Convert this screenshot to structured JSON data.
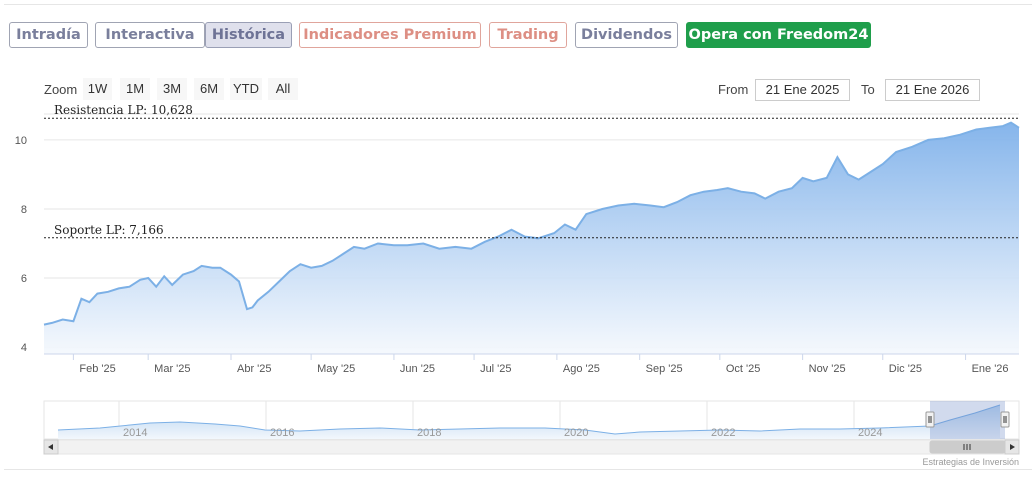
{
  "tabs": [
    {
      "label": "Intradía",
      "style": "grey"
    },
    {
      "label": "Interactiva",
      "style": "grey"
    },
    {
      "label": "Histórica",
      "style": "active"
    },
    {
      "label": "Indicadores Premium",
      "style": "red"
    },
    {
      "label": "Trading",
      "style": "red"
    },
    {
      "label": "Dividendos",
      "style": "grey"
    },
    {
      "label": "Opera con Freedom24",
      "style": "green"
    }
  ],
  "zoom": {
    "label": "Zoom",
    "buttons": [
      "1W",
      "1M",
      "3M",
      "6M",
      "YTD",
      "All"
    ]
  },
  "range": {
    "from_label": "From",
    "from_value": "21 Ene 2025",
    "to_label": "To",
    "to_value": "21 Ene 2026"
  },
  "credit": "Estrategias de Inversión",
  "colors": {
    "series": "#7cb0e6",
    "area_top": "#7fb1ea",
    "area_bottom": "#f4f8fd",
    "tab_green": "#1f9e4b"
  },
  "chart_data": {
    "type": "area",
    "title": "",
    "xlabel": "",
    "ylabel": "",
    "ylim": [
      3.8,
      10.75
    ],
    "yticks": [
      4,
      6,
      8,
      10
    ],
    "xlim": [
      "2025-01-21",
      "2026-01-21"
    ],
    "x_tick_labels": [
      {
        "label": "Feb '25",
        "date": "2025-02-01"
      },
      {
        "label": "Mar '25",
        "date": "2025-03-01"
      },
      {
        "label": "Abr '25",
        "date": "2025-04-01"
      },
      {
        "label": "May '25",
        "date": "2025-05-01"
      },
      {
        "label": "Jun '25",
        "date": "2025-06-01"
      },
      {
        "label": "Jul '25",
        "date": "2025-07-01"
      },
      {
        "label": "Ago '25",
        "date": "2025-08-01"
      },
      {
        "label": "Sep '25",
        "date": "2025-09-01"
      },
      {
        "label": "Oct '25",
        "date": "2025-10-01"
      },
      {
        "label": "Nov '25",
        "date": "2025-11-01"
      },
      {
        "label": "Dic '25",
        "date": "2025-12-01"
      },
      {
        "label": "Ene '26",
        "date": "2026-01-01"
      }
    ],
    "reference_lines": [
      {
        "label": "Resistencia LP: 10,628",
        "value": 10.628
      },
      {
        "label": "Soporte LP: 7,166",
        "value": 7.166
      }
    ],
    "grid": true,
    "series": [
      {
        "x": [
          "2025-01-21",
          "2025-01-24",
          "2025-01-28",
          "2025-02-01",
          "2025-02-04",
          "2025-02-07",
          "2025-02-10",
          "2025-02-14",
          "2025-02-18",
          "2025-02-22",
          "2025-02-26",
          "2025-03-01",
          "2025-03-04",
          "2025-03-07",
          "2025-03-10",
          "2025-03-14",
          "2025-03-18",
          "2025-03-21",
          "2025-03-25",
          "2025-03-28",
          "2025-04-01",
          "2025-04-04",
          "2025-04-07",
          "2025-04-09",
          "2025-04-11",
          "2025-04-15",
          "2025-04-19",
          "2025-04-23",
          "2025-04-27",
          "2025-05-01",
          "2025-05-05",
          "2025-05-09",
          "2025-05-13",
          "2025-05-17",
          "2025-05-21",
          "2025-05-26",
          "2025-06-01",
          "2025-06-06",
          "2025-06-12",
          "2025-06-18",
          "2025-06-24",
          "2025-06-30",
          "2025-07-05",
          "2025-07-10",
          "2025-07-15",
          "2025-07-20",
          "2025-07-25",
          "2025-07-31",
          "2025-08-04",
          "2025-08-08",
          "2025-08-12",
          "2025-08-18",
          "2025-08-24",
          "2025-08-30",
          "2025-09-05",
          "2025-09-10",
          "2025-09-15",
          "2025-09-20",
          "2025-09-25",
          "2025-09-30",
          "2025-10-04",
          "2025-10-09",
          "2025-10-14",
          "2025-10-18",
          "2025-10-23",
          "2025-10-28",
          "2025-11-01",
          "2025-11-05",
          "2025-11-10",
          "2025-11-14",
          "2025-11-18",
          "2025-11-22",
          "2025-11-27",
          "2025-12-01",
          "2025-12-06",
          "2025-12-12",
          "2025-12-18",
          "2025-12-24",
          "2025-12-30",
          "2026-01-05",
          "2026-01-10",
          "2026-01-15",
          "2026-01-18",
          "2026-01-21"
        ],
        "values": [
          4.65,
          4.7,
          4.8,
          4.75,
          5.4,
          5.3,
          5.55,
          5.6,
          5.7,
          5.75,
          5.95,
          6.0,
          5.75,
          6.05,
          5.8,
          6.1,
          6.2,
          6.35,
          6.3,
          6.3,
          6.1,
          5.9,
          5.1,
          5.15,
          5.35,
          5.6,
          5.9,
          6.2,
          6.4,
          6.3,
          6.35,
          6.5,
          6.7,
          6.9,
          6.85,
          7.0,
          6.95,
          6.95,
          7.0,
          6.85,
          6.9,
          6.85,
          7.05,
          7.2,
          7.4,
          7.2,
          7.15,
          7.3,
          7.55,
          7.4,
          7.85,
          8.0,
          8.1,
          8.15,
          8.1,
          8.05,
          8.2,
          8.4,
          8.5,
          8.55,
          8.6,
          8.5,
          8.45,
          8.3,
          8.5,
          8.6,
          8.9,
          8.8,
          8.9,
          9.5,
          9.0,
          8.85,
          9.1,
          9.3,
          9.65,
          9.8,
          10.0,
          10.05,
          10.15,
          10.3,
          10.35,
          10.4,
          10.5,
          10.35
        ]
      }
    ],
    "navigator": {
      "x_tick_labels": [
        "2014",
        "2016",
        "2018",
        "2020",
        "2022",
        "2024"
      ]
    }
  }
}
